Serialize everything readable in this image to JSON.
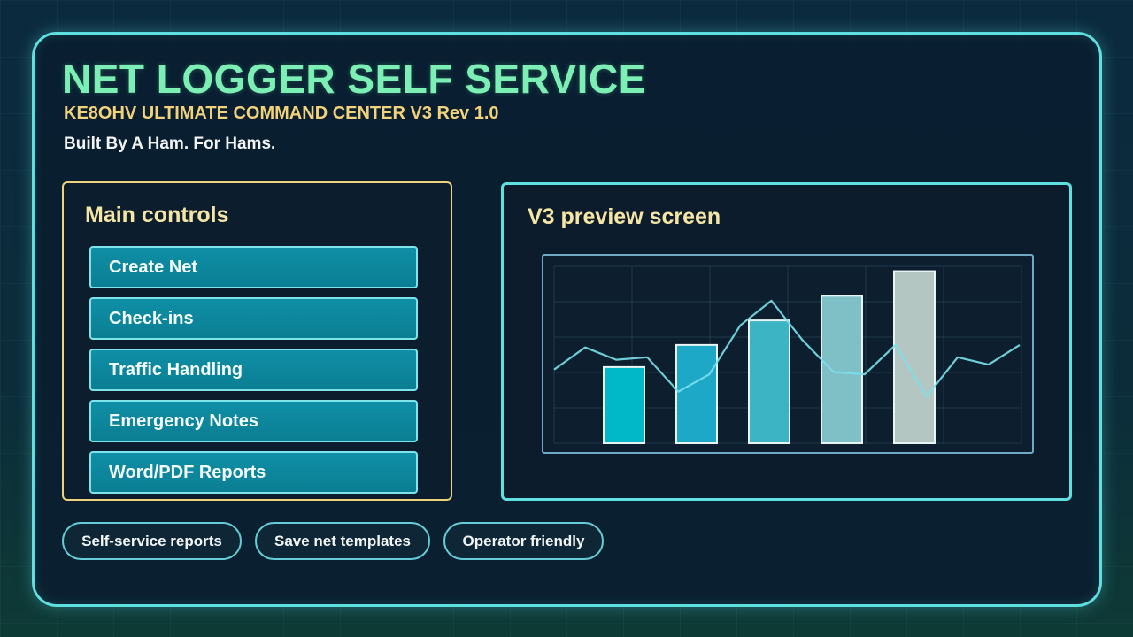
{
  "header": {
    "title": "NET LOGGER SELF SERVICE",
    "subtitle": "KE8OHV ULTIMATE COMMAND CENTER V3 Rev 1.0",
    "tagline": "Built By A Ham. For Hams."
  },
  "controls": {
    "title": "Main controls",
    "buttons": [
      {
        "label": "Create Net"
      },
      {
        "label": "Check-ins"
      },
      {
        "label": "Traffic Handling"
      },
      {
        "label": "Emergency Notes"
      },
      {
        "label": "Word/PDF Reports"
      }
    ]
  },
  "preview": {
    "title": "V3 preview screen"
  },
  "chart_data": {
    "type": "bar",
    "bar_values": [
      31,
      40,
      50,
      60,
      70
    ],
    "bar_colors": [
      "#00b8c8",
      "#1ea8c8",
      "#3cb4c4",
      "#7ec0c6",
      "#b4c6c2"
    ],
    "line_values": [
      30,
      39,
      34,
      35,
      21,
      28,
      48,
      58,
      42,
      29,
      28,
      40,
      19,
      35,
      32,
      40
    ],
    "line_color": "#7ae0ec",
    "ylim": [
      0,
      72
    ],
    "grid": true
  },
  "pills": [
    {
      "label": "Self-service reports"
    },
    {
      "label": "Save net templates"
    },
    {
      "label": "Operator friendly"
    }
  ],
  "colors": {
    "accent": "#5ee0e0",
    "title": "#7cf0b4",
    "highlight": "#f2d27a",
    "button": "#0f8fa6"
  }
}
